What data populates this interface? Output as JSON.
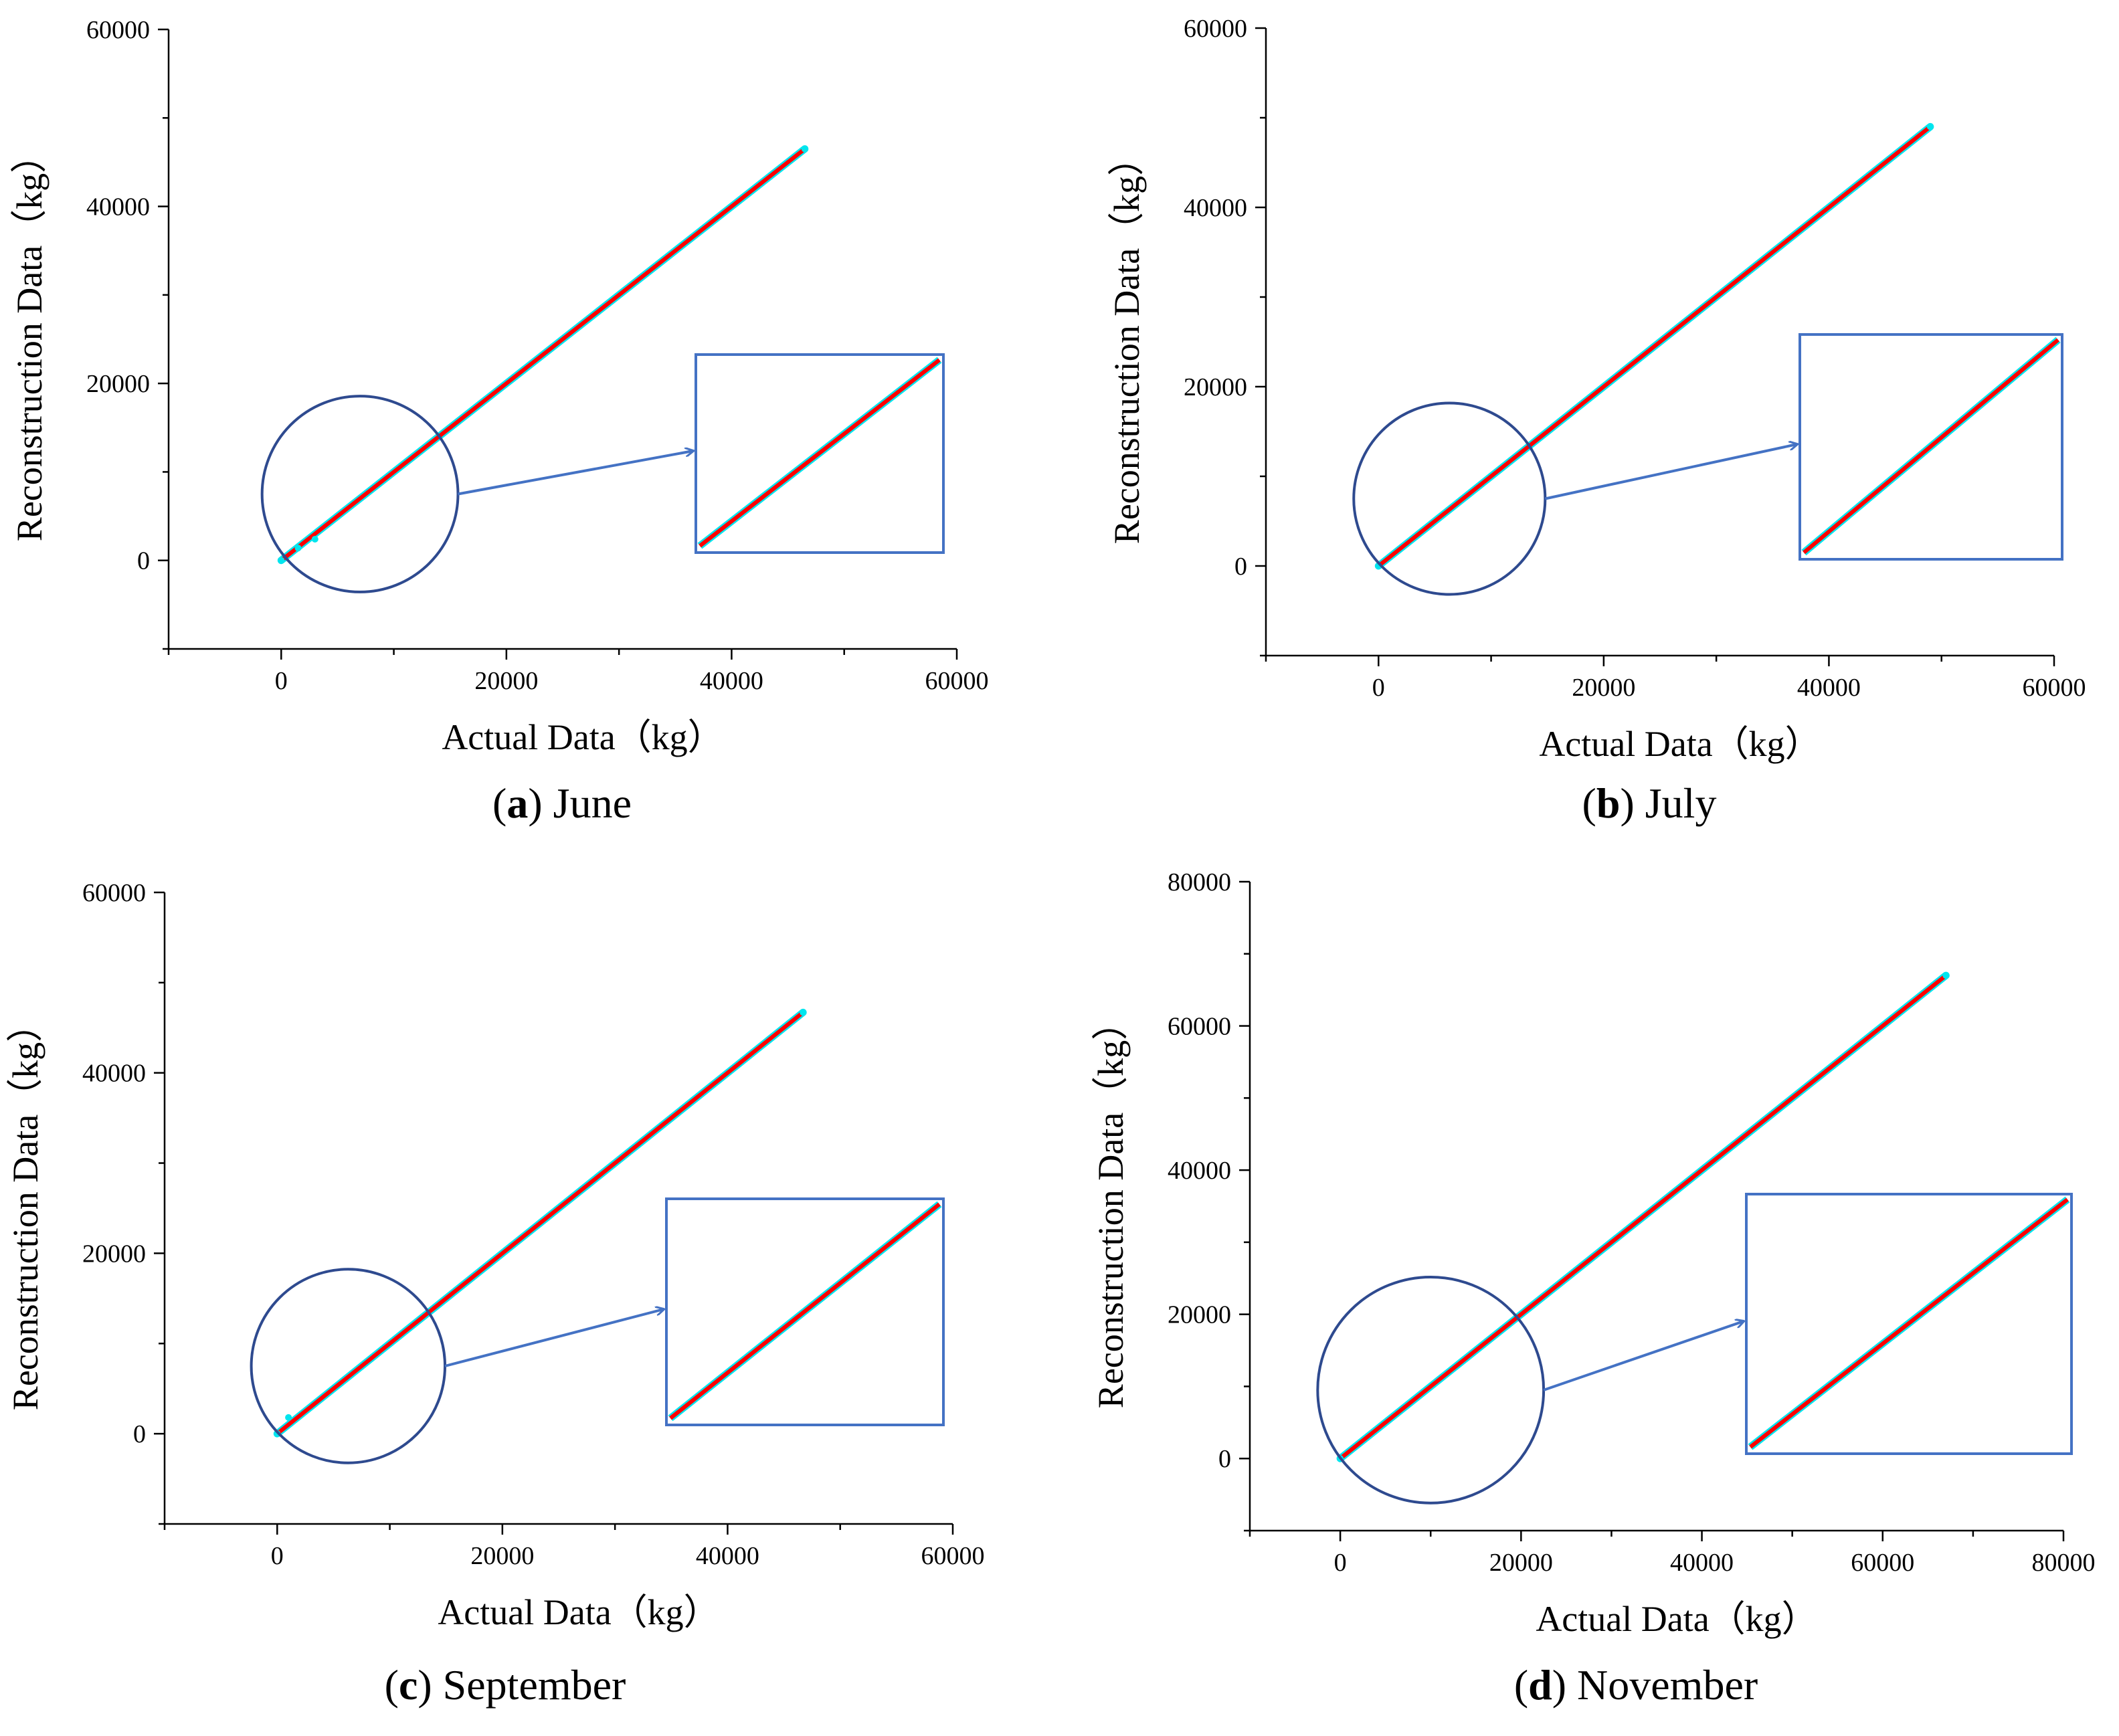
{
  "colors": {
    "fit_line": "#ff0000",
    "points": "#00e5ee",
    "circle": "#2e4a8f",
    "inset_box": "#4472c4",
    "arrow": "#4472c4",
    "axis": "#000000"
  },
  "chart_data": [
    {
      "type": "scatter",
      "panel": "a",
      "caption_letter": "a",
      "caption_text": "June",
      "xlabel": "Actual Data（kg）",
      "ylabel": "Reconstruction Data（kg）",
      "xlim": [
        -10000,
        60000
      ],
      "ylim": [
        -10000,
        60000
      ],
      "xticks": [
        "0",
        "20000",
        "40000",
        "60000"
      ],
      "yticks": [
        "0",
        "20000",
        "40000",
        "60000"
      ],
      "fit_line": {
        "from": [
          0,
          0
        ],
        "to": [
          46500,
          46500
        ]
      },
      "points": [
        [
          0,
          0
        ],
        [
          1500,
          1400
        ],
        [
          3000,
          2400
        ],
        [
          46500,
          46500
        ]
      ],
      "zoom_circle": {
        "center": [
          7000,
          7500
        ],
        "radius": 8700
      }
    },
    {
      "type": "scatter",
      "panel": "b",
      "caption_letter": "b",
      "caption_text": "July",
      "xlabel": "Actual Data（kg）",
      "ylabel": "Reconstruction Data（kg）",
      "xlim": [
        -10000,
        60000
      ],
      "ylim": [
        -10000,
        60000
      ],
      "xticks": [
        "0",
        "20000",
        "40000",
        "60000"
      ],
      "yticks": [
        "0",
        "20000",
        "40000",
        "60000"
      ],
      "fit_line": {
        "from": [
          0,
          0
        ],
        "to": [
          49000,
          49000
        ]
      },
      "points": [
        [
          0,
          0
        ],
        [
          49000,
          49000
        ]
      ],
      "zoom_circle": {
        "center": [
          6300,
          7500
        ],
        "radius": 8500
      }
    },
    {
      "type": "scatter",
      "panel": "c",
      "caption_letter": "c",
      "caption_text": "September",
      "xlabel": "Actual Data（kg）",
      "ylabel": "Reconstruction Data（kg）",
      "xlim": [
        -10000,
        60000
      ],
      "ylim": [
        -10000,
        60000
      ],
      "xticks": [
        "0",
        "20000",
        "40000",
        "60000"
      ],
      "yticks": [
        "0",
        "20000",
        "40000",
        "60000"
      ],
      "fit_line": {
        "from": [
          0,
          0
        ],
        "to": [
          46700,
          46700
        ]
      },
      "points": [
        [
          0,
          0
        ],
        [
          1000,
          1800
        ],
        [
          46700,
          46700
        ]
      ],
      "zoom_circle": {
        "center": [
          6300,
          7500
        ],
        "radius": 8600
      }
    },
    {
      "type": "scatter",
      "panel": "d",
      "caption_letter": "d",
      "caption_text": "November",
      "xlabel": "Actual Data（kg）",
      "ylabel": "Reconstruction Data（kg）",
      "xlim": [
        -10000,
        80000
      ],
      "ylim": [
        -10000,
        80000
      ],
      "xticks": [
        "0",
        "20000",
        "40000",
        "60000",
        "80000"
      ],
      "yticks": [
        "0",
        "20000",
        "40000",
        "60000",
        "80000"
      ],
      "fit_line": {
        "from": [
          0,
          0
        ],
        "to": [
          67000,
          67000
        ]
      },
      "points": [
        [
          0,
          0
        ],
        [
          67000,
          67000
        ]
      ],
      "zoom_circle": {
        "center": [
          10000,
          9500
        ],
        "radius": 12500
      }
    }
  ]
}
